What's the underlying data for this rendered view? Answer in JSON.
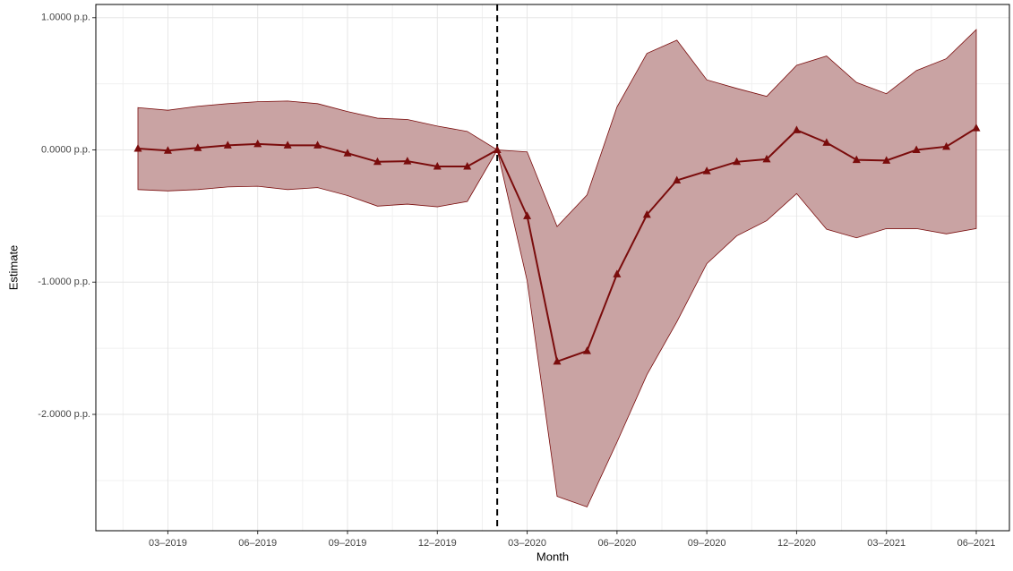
{
  "chart_data": {
    "type": "line",
    "x_label": "Month",
    "y_label": "Estimate",
    "categories": [
      null,
      "03–2019",
      null,
      null,
      "06–2019",
      null,
      null,
      "09–2019",
      null,
      null,
      "12–2019",
      null,
      null,
      "03–2020",
      null,
      null,
      "06–2020",
      null,
      null,
      "09–2020",
      null,
      null,
      "12–2020",
      null,
      null,
      "03–2021",
      null,
      null,
      "06–2021"
    ],
    "values": [
      0.01,
      -0.005,
      0.015,
      0.035,
      0.045,
      0.035,
      0.035,
      -0.025,
      -0.09,
      -0.085,
      -0.125,
      -0.125,
      0,
      -0.5,
      -1.6,
      -1.52,
      -0.94,
      -0.49,
      -0.23,
      -0.16,
      -0.09,
      -0.07,
      0.15,
      0.055,
      -0.075,
      -0.08,
      0,
      0.025,
      0.165
    ],
    "upper": [
      0.32,
      0.3,
      0.33,
      0.35,
      0.365,
      0.37,
      0.35,
      0.29,
      0.24,
      0.23,
      0.18,
      0.14,
      0,
      -0.015,
      -0.58,
      -0.34,
      0.325,
      0.73,
      0.83,
      0.53,
      0.465,
      0.405,
      0.64,
      0.71,
      0.51,
      0.425,
      0.6,
      0.69,
      0.91
    ],
    "lower": [
      -0.3,
      -0.31,
      -0.3,
      -0.28,
      -0.275,
      -0.3,
      -0.285,
      -0.345,
      -0.425,
      -0.41,
      -0.43,
      -0.39,
      0,
      -0.99,
      -2.62,
      -2.7,
      -2.21,
      -1.7,
      -1.3,
      -0.86,
      -0.65,
      -0.535,
      -0.33,
      -0.6,
      -0.665,
      -0.595,
      -0.595,
      -0.635,
      -0.595
    ],
    "color": "#7a0c0c",
    "band_color": "#c9a3a3",
    "ylim": [
      -2.88,
      1.1
    ],
    "yticks": [
      {
        "value": -2,
        "label": "-2.0000 p.p."
      },
      {
        "value": -1,
        "label": "-1.0000 p.p."
      },
      {
        "value": 0,
        "label": "0.0000 p.p."
      },
      {
        "value": 1,
        "label": "1.0000 p.p."
      }
    ],
    "grid": true
  }
}
